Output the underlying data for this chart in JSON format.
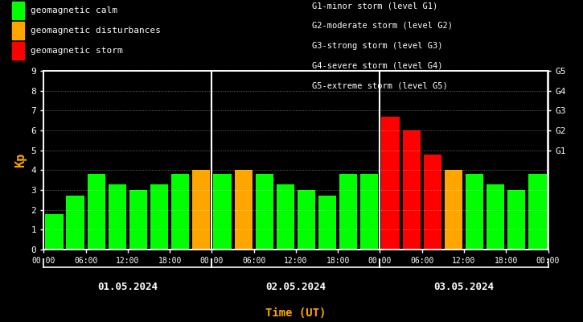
{
  "xlabel": "Time (UT)",
  "ylabel": "Kp",
  "ylim": [
    0,
    9
  ],
  "yticks": [
    0,
    1,
    2,
    3,
    4,
    5,
    6,
    7,
    8,
    9
  ],
  "background_color": "#000000",
  "bar_data": [
    {
      "value": 1.8,
      "color": "#00ff00"
    },
    {
      "value": 2.7,
      "color": "#00ff00"
    },
    {
      "value": 3.8,
      "color": "#00ff00"
    },
    {
      "value": 3.3,
      "color": "#00ff00"
    },
    {
      "value": 3.0,
      "color": "#00ff00"
    },
    {
      "value": 3.3,
      "color": "#00ff00"
    },
    {
      "value": 3.8,
      "color": "#00ff00"
    },
    {
      "value": 4.0,
      "color": "#ffa500"
    },
    {
      "value": 3.8,
      "color": "#00ff00"
    },
    {
      "value": 4.0,
      "color": "#ffa500"
    },
    {
      "value": 3.8,
      "color": "#00ff00"
    },
    {
      "value": 3.3,
      "color": "#00ff00"
    },
    {
      "value": 3.0,
      "color": "#00ff00"
    },
    {
      "value": 2.7,
      "color": "#00ff00"
    },
    {
      "value": 3.8,
      "color": "#00ff00"
    },
    {
      "value": 3.8,
      "color": "#00ff00"
    },
    {
      "value": 6.7,
      "color": "#ff0000"
    },
    {
      "value": 6.0,
      "color": "#ff0000"
    },
    {
      "value": 4.8,
      "color": "#ff0000"
    },
    {
      "value": 4.0,
      "color": "#ffa500"
    },
    {
      "value": 3.8,
      "color": "#00ff00"
    },
    {
      "value": 3.3,
      "color": "#00ff00"
    },
    {
      "value": 3.0,
      "color": "#00ff00"
    },
    {
      "value": 3.8,
      "color": "#00ff00"
    }
  ],
  "day_labels": [
    "01.05.2024",
    "02.05.2024",
    "03.05.2024"
  ],
  "display_xtick_labels": [
    "00:00",
    "06:00",
    "12:00",
    "18:00",
    "00:00",
    "06:00",
    "12:00",
    "18:00",
    "00:00",
    "06:00",
    "12:00",
    "18:00",
    "00:00"
  ],
  "display_xtick_positions": [
    0,
    2,
    4,
    6,
    8,
    10,
    12,
    14,
    16,
    18,
    20,
    22,
    24
  ],
  "right_ytick_labels": [
    "G5",
    "G4",
    "G3",
    "G2",
    "G1"
  ],
  "right_ytick_positions": [
    9,
    8,
    7,
    6,
    5
  ],
  "legend_items": [
    {
      "label": "geomagnetic calm",
      "color": "#00ff00"
    },
    {
      "label": "geomagnetic disturbances",
      "color": "#ffa500"
    },
    {
      "label": "geomagnetic storm",
      "color": "#ff0000"
    }
  ],
  "right_legend_items": [
    "G1-minor storm (level G1)",
    "G2-moderate storm (level G2)",
    "G3-strong storm (level G3)",
    "G4-severe storm (level G4)",
    "G5-extreme storm (level G5)"
  ],
  "text_color": "#ffffff",
  "ylabel_color": "#ffa500",
  "xlabel_color": "#ffa500",
  "grid_color": "#ffffff",
  "axis_color": "#ffffff",
  "font_family": "monospace"
}
